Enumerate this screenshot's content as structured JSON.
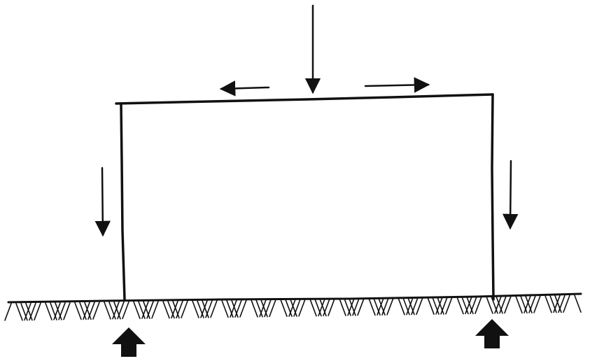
{
  "diagram": {
    "description_none": "",
    "frame": {
      "members": [
        "left-column",
        "beam",
        "right-column"
      ]
    },
    "arrows": {
      "top_load": "down",
      "beam_left": "left",
      "beam_right": "right",
      "left_column": "down",
      "right_column": "down",
      "left_support_reaction": "up",
      "right_support_reaction": "up"
    },
    "colors": {
      "ink": "#111111",
      "paper": "#ffffff"
    },
    "ground": {
      "style": "hatched"
    }
  }
}
